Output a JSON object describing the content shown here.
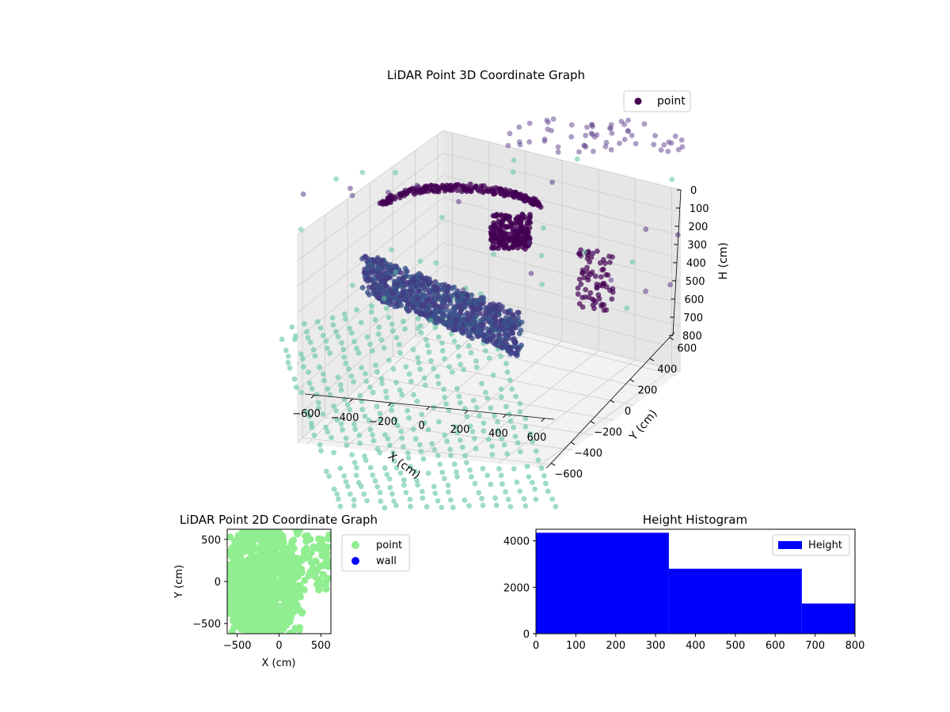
{
  "chart_data": [
    {
      "type": "scatter",
      "title": "LiDAR Point 3D Coordinate Graph",
      "projection": "3d",
      "xlabel": "X (cm)",
      "ylabel": "Y (cm)",
      "zlabel": "H (cm)",
      "x_ticks": [
        -600,
        -400,
        -200,
        0,
        200,
        400,
        600
      ],
      "y_ticks": [
        -600,
        -400,
        -200,
        0,
        200,
        400,
        600
      ],
      "z_ticks": [
        0,
        100,
        200,
        300,
        400,
        500,
        600,
        700,
        800
      ],
      "xlim": [
        -650,
        650
      ],
      "ylim": [
        -650,
        650
      ],
      "zlim": [
        800,
        0
      ],
      "z_inverted": true,
      "colormap": "viridis",
      "colors": {
        "high": "#440154",
        "mid": "#3b528b",
        "low": "#5ec5a0"
      },
      "legend": {
        "entries": [
          "point"
        ],
        "marker_color": "#440154",
        "placement": "upper-right"
      },
      "grid": true,
      "series": [
        {
          "name": "point",
          "description": "floor grid points (low H)",
          "points": [
            [
              -600,
              -500,
              790
            ],
            [
              -400,
              -500,
              790
            ],
            [
              -200,
              -500,
              790
            ],
            [
              0,
              -500,
              790
            ],
            [
              200,
              -500,
              790
            ],
            [
              400,
              -500,
              790
            ],
            [
              600,
              -500,
              790
            ],
            [
              -600,
              0,
              790
            ],
            [
              -400,
              0,
              790
            ],
            [
              -200,
              0,
              790
            ],
            [
              0,
              0,
              790
            ],
            [
              200,
              0,
              790
            ],
            [
              400,
              0,
              790
            ],
            [
              -600,
              400,
              790
            ],
            [
              -400,
              400,
              790
            ],
            [
              -200,
              400,
              790
            ],
            [
              0,
              400,
              790
            ]
          ]
        }
      ]
    },
    {
      "type": "scatter",
      "title": "LiDAR Point 2D Coordinate Graph",
      "xlabel": "X (cm)",
      "ylabel": "Y (cm)",
      "x_ticks": [
        -500,
        0,
        500
      ],
      "y_ticks": [
        -500,
        0,
        500
      ],
      "xlim": [
        -620,
        620
      ],
      "ylim": [
        -620,
        620
      ],
      "legend": {
        "placement": "outside-right"
      },
      "series": [
        {
          "name": "point",
          "color": "#90ee90",
          "region": "dense cluster x -600..300, y -600..600"
        },
        {
          "name": "wall",
          "color": "#0000ff",
          "points": []
        }
      ]
    },
    {
      "type": "bar",
      "title": "Height Histogram",
      "xlabel": "",
      "ylabel": "",
      "x_ticks": [
        0,
        100,
        200,
        300,
        400,
        500,
        600,
        700,
        800
      ],
      "y_ticks": [
        0,
        2000,
        4000
      ],
      "xlim": [
        0,
        800
      ],
      "ylim": [
        0,
        4500
      ],
      "bins": [
        {
          "start": 0,
          "end": 333.3,
          "count": 4350
        },
        {
          "start": 333.3,
          "end": 666.7,
          "count": 2800
        },
        {
          "start": 666.7,
          "end": 800,
          "count": 1300
        }
      ],
      "color": "#0000ff",
      "legend": {
        "entries": [
          "Height"
        ],
        "placement": "upper-right"
      }
    }
  ]
}
